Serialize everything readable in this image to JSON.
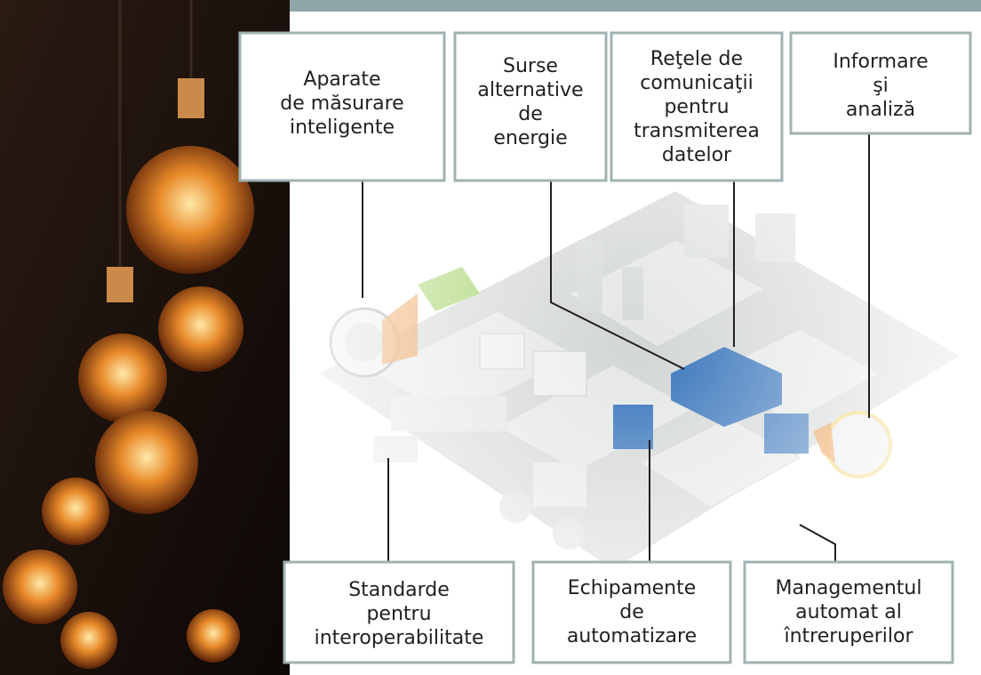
{
  "labels": [
    {
      "lines": [
        "Aparate",
        "de măsurare",
        "inteligente"
      ]
    },
    {
      "lines": [
        "Surse",
        "alternative",
        "de",
        "energie"
      ]
    },
    {
      "lines": [
        "Reţele de",
        "comunicaţii",
        "pentru",
        "transmiterea",
        "datelor"
      ]
    },
    {
      "lines": [
        "Informare",
        "şi",
        "analiză"
      ]
    },
    {
      "lines": [
        "Standarde",
        "pentru",
        "interoperabilitate"
      ]
    },
    {
      "lines": [
        "Echipamente",
        "de",
        "automatizare"
      ]
    },
    {
      "lines": [
        "Managementul",
        "automat al",
        "întreruperilor"
      ]
    }
  ]
}
